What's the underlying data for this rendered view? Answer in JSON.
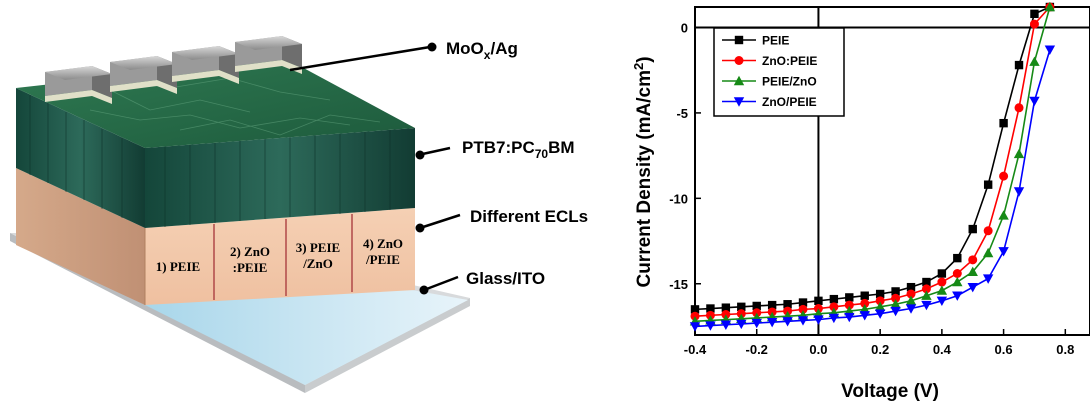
{
  "device": {
    "layers": {
      "top_contact": {
        "prefix": "MoO",
        "sub": "x",
        "suffix": "/Ag"
      },
      "active": {
        "prefix": "PTB7:PC",
        "sub": "70",
        "suffix": "BM"
      },
      "ecl": "Different ECLs",
      "substrate": "Glass/ITO"
    },
    "ecl_cells": [
      [
        "1) PEIE"
      ],
      [
        "2) ZnO",
        ":PEIE"
      ],
      [
        "3) PEIE",
        "/ZnO"
      ],
      [
        "4) ZnO",
        "/PEIE"
      ]
    ],
    "colors": {
      "active": "#1f5a48",
      "ecl": "#f2c8a8",
      "glass": "#c9e6f2"
    }
  },
  "chart_data": {
    "type": "line",
    "xlabel": "Voltage (V)",
    "ylabel": {
      "prefix": "Current Density (mA/cm",
      "sup": "2",
      "suffix": ")"
    },
    "xlim": [
      -0.4,
      0.88
    ],
    "ylim": [
      -18,
      1.2
    ],
    "xticks": [
      "-0.4",
      "-0.2",
      "0.0",
      "0.2",
      "0.4",
      "0.6",
      "0.8"
    ],
    "yticks": [
      "0",
      "-5",
      "-10",
      "-15"
    ],
    "legend_position": "top-left",
    "series": [
      {
        "name": "PEIE",
        "color": "#000000",
        "marker": "square",
        "x": [
          -0.4,
          -0.35,
          -0.3,
          -0.25,
          -0.2,
          -0.15,
          -0.1,
          -0.05,
          0,
          0.05,
          0.1,
          0.15,
          0.2,
          0.25,
          0.3,
          0.35,
          0.4,
          0.45,
          0.5,
          0.55,
          0.6,
          0.65,
          0.7,
          0.75
        ],
        "y": [
          -16.5,
          -16.45,
          -16.4,
          -16.35,
          -16.3,
          -16.25,
          -16.2,
          -16.1,
          -16.0,
          -15.9,
          -15.8,
          -15.7,
          -15.6,
          -15.45,
          -15.2,
          -14.9,
          -14.4,
          -13.5,
          -11.8,
          -9.2,
          -5.6,
          -2.2,
          0.8,
          1.2
        ]
      },
      {
        "name": "ZnO:PEIE",
        "color": "#ff0000",
        "marker": "circle",
        "x": [
          -0.4,
          -0.35,
          -0.3,
          -0.25,
          -0.2,
          -0.15,
          -0.1,
          -0.05,
          0,
          0.05,
          0.1,
          0.15,
          0.2,
          0.25,
          0.3,
          0.35,
          0.4,
          0.45,
          0.5,
          0.55,
          0.6,
          0.65,
          0.7,
          0.75
        ],
        "y": [
          -16.9,
          -16.85,
          -16.8,
          -16.75,
          -16.7,
          -16.65,
          -16.6,
          -16.5,
          -16.45,
          -16.35,
          -16.25,
          -16.15,
          -16.0,
          -15.85,
          -15.6,
          -15.3,
          -14.9,
          -14.4,
          -13.6,
          -11.9,
          -8.7,
          -4.7,
          0.2,
          1.2
        ]
      },
      {
        "name": "PEIE/ZnO",
        "color": "#168a16",
        "marker": "triangle-up",
        "x": [
          -0.4,
          -0.35,
          -0.3,
          -0.25,
          -0.2,
          -0.15,
          -0.1,
          -0.05,
          0,
          0.05,
          0.1,
          0.15,
          0.2,
          0.25,
          0.3,
          0.35,
          0.4,
          0.45,
          0.5,
          0.55,
          0.6,
          0.65,
          0.7,
          0.75
        ],
        "y": [
          -17.2,
          -17.15,
          -17.1,
          -17.05,
          -17.0,
          -16.95,
          -16.9,
          -16.85,
          -16.75,
          -16.7,
          -16.6,
          -16.5,
          -16.35,
          -16.2,
          -16.0,
          -15.7,
          -15.4,
          -14.9,
          -14.3,
          -13.2,
          -11.0,
          -7.4,
          -2.0,
          1.2
        ]
      },
      {
        "name": "ZnO/PEIE",
        "color": "#0000ff",
        "marker": "triangle-down",
        "x": [
          -0.4,
          -0.35,
          -0.3,
          -0.25,
          -0.2,
          -0.15,
          -0.1,
          -0.05,
          0,
          0.05,
          0.1,
          0.15,
          0.2,
          0.25,
          0.3,
          0.35,
          0.4,
          0.45,
          0.5,
          0.55,
          0.6,
          0.65,
          0.7,
          0.75
        ],
        "y": [
          -17.5,
          -17.45,
          -17.4,
          -17.35,
          -17.3,
          -17.25,
          -17.2,
          -17.15,
          -17.1,
          -17.0,
          -16.95,
          -16.85,
          -16.75,
          -16.6,
          -16.45,
          -16.25,
          -16.0,
          -15.7,
          -15.2,
          -14.7,
          -13.1,
          -9.6,
          -4.3,
          -1.3
        ]
      }
    ]
  }
}
